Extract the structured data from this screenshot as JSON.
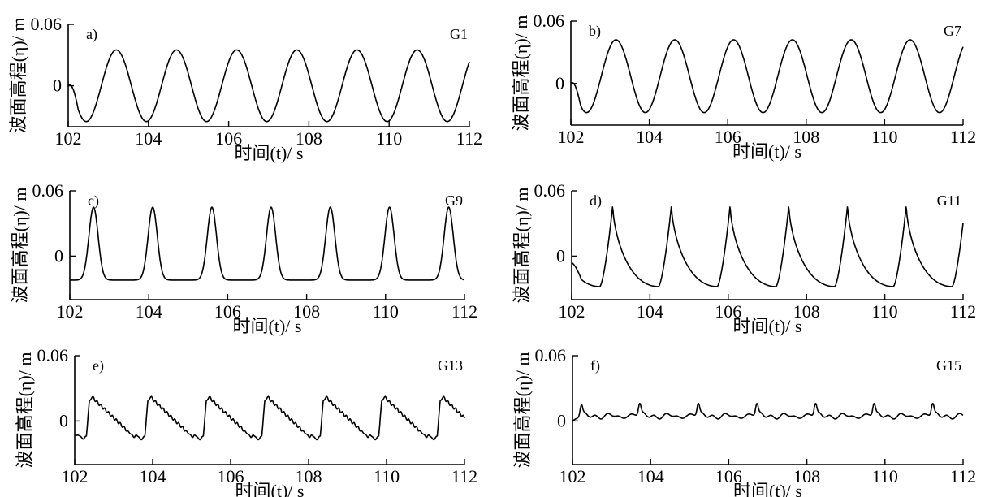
{
  "figure_labels": {
    "xlabel": "时间(t)/ s",
    "ylabel": "波面高程(η)/ m"
  },
  "chart_data": [
    {
      "type": "line",
      "panel": "a)",
      "gauge": "G1",
      "xlabel": "时间(t)/ s",
      "ylabel": "波面高程(η)/ m",
      "xlim": [
        102,
        112
      ],
      "ylim": [
        -0.04,
        0.06
      ],
      "x_ticks": [
        "102",
        "104",
        "106",
        "108",
        "110",
        "112"
      ],
      "y_ticks": [
        "0.06",
        "0"
      ],
      "grid": false,
      "wave": {
        "period": 1.5,
        "crest": 0.035,
        "trough": -0.035,
        "first_crest": 103.2,
        "start": 0.0
      }
    },
    {
      "type": "line",
      "panel": "b)",
      "gauge": "G7",
      "xlabel": "时间(t)/ s",
      "ylabel": "波面高程(η)/ m",
      "xlim": [
        102,
        112
      ],
      "ylim": [
        -0.04,
        0.06
      ],
      "x_ticks": [
        "102",
        "104",
        "106",
        "108",
        "110",
        "112"
      ],
      "y_ticks": [
        "0.06",
        "0"
      ],
      "grid": false,
      "wave": {
        "period": 1.5,
        "crest": 0.042,
        "trough": -0.028,
        "first_crest": 103.15,
        "start": 0.0
      }
    },
    {
      "type": "line",
      "panel": "c)",
      "gauge": "G9",
      "xlabel": "时间(t)/ s",
      "ylabel": "波面高程(η)/ m",
      "xlim": [
        102,
        112
      ],
      "ylim": [
        -0.04,
        0.06
      ],
      "x_ticks": [
        "102",
        "104",
        "106",
        "108",
        "110",
        "112"
      ],
      "y_ticks": [
        "0.06",
        "0"
      ],
      "grid": false,
      "wave": {
        "period": 1.5,
        "crest": 0.045,
        "trough": -0.022,
        "first_crest": 102.6,
        "start": -0.022
      }
    },
    {
      "type": "line",
      "panel": "d)",
      "gauge": "G11",
      "xlabel": "时间(t)/ s",
      "ylabel": "波面高程(η)/ m",
      "xlim": [
        102,
        112
      ],
      "ylim": [
        -0.04,
        0.06
      ],
      "x_ticks": [
        "102",
        "104",
        "106",
        "108",
        "110",
        "112"
      ],
      "y_ticks": [
        "0.06",
        "0"
      ],
      "grid": false,
      "wave": {
        "period": 1.5,
        "crest": 0.047,
        "trough": -0.028,
        "first_crest": 103.05,
        "start": -0.006
      }
    },
    {
      "type": "line",
      "panel": "e)",
      "gauge": "G13",
      "xlabel": "时间(t)/ s",
      "ylabel": "波面高程(η)/ m",
      "xlim": [
        102,
        112
      ],
      "ylim": [
        -0.04,
        0.06
      ],
      "x_ticks": [
        "102",
        "104",
        "106",
        "108",
        "110",
        "112"
      ],
      "y_ticks": [
        "0.06",
        "0"
      ],
      "grid": false,
      "wave": {
        "period": 1.5,
        "crest": 0.022,
        "trough": -0.015,
        "first_crest": 102.45,
        "start": -0.013
      }
    },
    {
      "type": "line",
      "panel": "f)",
      "gauge": "G15",
      "xlabel": "时间(t)/ s",
      "ylabel": "波面高程(η)/ m",
      "xlim": [
        102,
        112
      ],
      "ylim": [
        -0.04,
        0.06
      ],
      "x_ticks": [
        "102",
        "104",
        "106",
        "108",
        "110",
        "112"
      ],
      "y_ticks": [
        "0.06",
        "0"
      ],
      "grid": false,
      "wave": {
        "period": 1.5,
        "crest": 0.016,
        "trough": -0.004,
        "first_crest": 102.22,
        "start": 0.0
      }
    }
  ]
}
